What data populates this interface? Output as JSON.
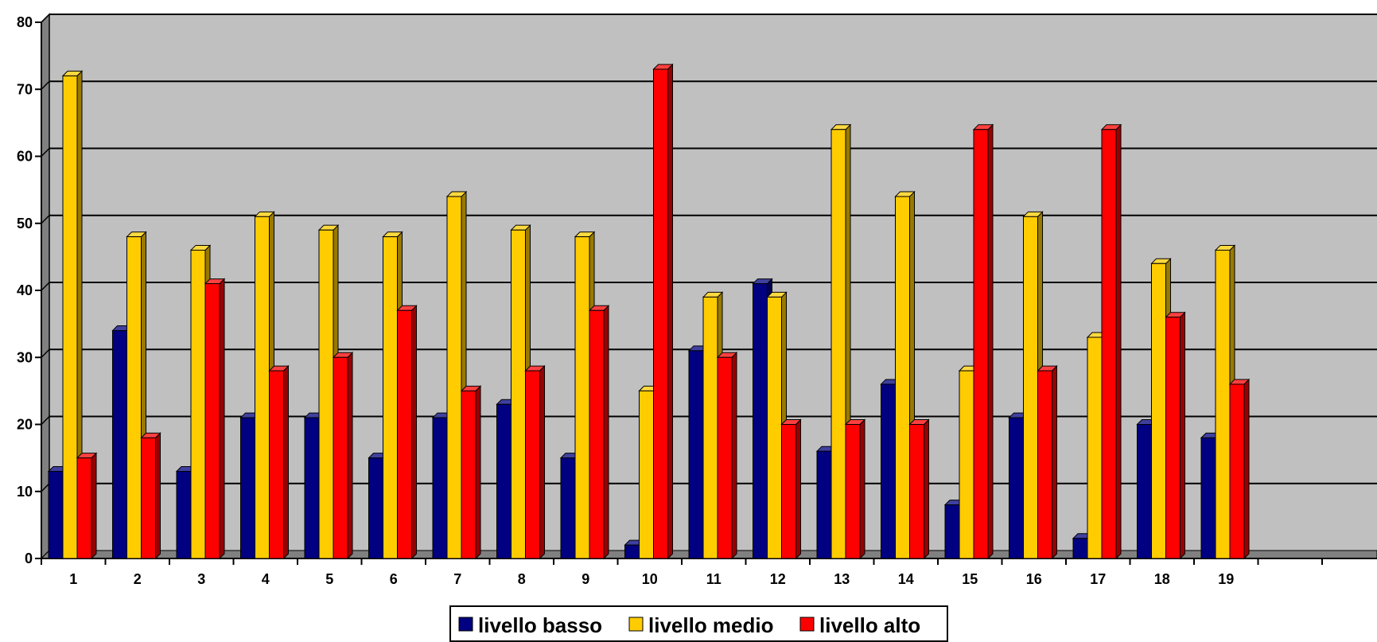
{
  "chart_data": {
    "type": "bar",
    "style": "3d-clustered-column",
    "categories": [
      "1",
      "2",
      "3",
      "4",
      "5",
      "6",
      "7",
      "8",
      "9",
      "10",
      "11",
      "12",
      "13",
      "14",
      "15",
      "16",
      "17",
      "18",
      "19"
    ],
    "series": [
      {
        "name": "livello basso",
        "values": [
          13,
          34,
          13,
          21,
          21,
          15,
          21,
          23,
          15,
          2,
          31,
          41,
          16,
          26,
          8,
          21,
          3,
          20,
          18
        ],
        "color": "#000080"
      },
      {
        "name": "livello medio",
        "values": [
          72,
          48,
          46,
          51,
          49,
          48,
          54,
          49,
          48,
          25,
          39,
          39,
          64,
          54,
          28,
          51,
          33,
          44,
          46
        ],
        "color": "#FFCC00"
      },
      {
        "name": "livello alto",
        "values": [
          15,
          18,
          41,
          28,
          30,
          37,
          25,
          28,
          37,
          73,
          30,
          20,
          20,
          20,
          64,
          28,
          64,
          36,
          26
        ],
        "color": "#FF0000"
      }
    ],
    "ylim": [
      0,
      80
    ],
    "yticks": [
      "0",
      "10",
      "20",
      "30",
      "40",
      "50",
      "60",
      "70",
      "80"
    ],
    "grid": true,
    "legend_position": "bottom",
    "background_color": "#C0C0C0"
  }
}
